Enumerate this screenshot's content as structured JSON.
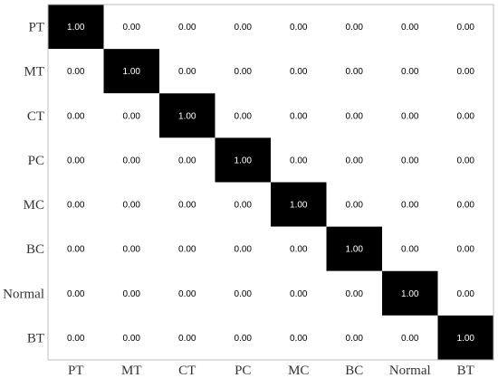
{
  "chart_data": {
    "type": "heatmap",
    "row_labels": [
      "PT",
      "MT",
      "CT",
      "PC",
      "MC",
      "BC",
      "Normal",
      "BT"
    ],
    "col_labels": [
      "PT",
      "MT",
      "CT",
      "PC",
      "MC",
      "BC",
      "Normal",
      "BT"
    ],
    "values": [
      [
        "1.00",
        "0.00",
        "0.00",
        "0.00",
        "0.00",
        "0.00",
        "0.00",
        "0.00"
      ],
      [
        "0.00",
        "1.00",
        "0.00",
        "0.00",
        "0.00",
        "0.00",
        "0.00",
        "0.00"
      ],
      [
        "0.00",
        "0.00",
        "1.00",
        "0.00",
        "0.00",
        "0.00",
        "0.00",
        "0.00"
      ],
      [
        "0.00",
        "0.00",
        "0.00",
        "1.00",
        "0.00",
        "0.00",
        "0.00",
        "0.00"
      ],
      [
        "0.00",
        "0.00",
        "0.00",
        "0.00",
        "1.00",
        "0.00",
        "0.00",
        "0.00"
      ],
      [
        "0.00",
        "0.00",
        "0.00",
        "0.00",
        "0.00",
        "1.00",
        "0.00",
        "0.00"
      ],
      [
        "0.00",
        "0.00",
        "0.00",
        "0.00",
        "0.00",
        "0.00",
        "1.00",
        "0.00"
      ],
      [
        "0.00",
        "0.00",
        "0.00",
        "0.00",
        "0.00",
        "0.00",
        "0.00",
        "1.00"
      ]
    ],
    "value_range": [
      0,
      1
    ],
    "colormap": {
      "low": "#ffffff",
      "high": "#000000"
    },
    "title": "",
    "xlabel": "",
    "ylabel": "",
    "grid": false,
    "legend": "none"
  }
}
